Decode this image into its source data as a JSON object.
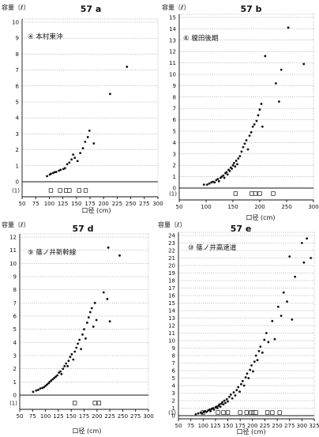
{
  "chart_data": [
    {
      "type": "scatter",
      "title": "57 a",
      "site_label": "④ 本村東沖",
      "ylabel": "容量〔ℓ〕",
      "xlabel": "口径 (cm)",
      "xlim": [
        50,
        300
      ],
      "ylim": [
        -1,
        10
      ],
      "x_ticks": [
        50,
        75,
        100,
        125,
        150,
        175,
        200,
        225,
        250,
        275,
        300
      ],
      "y_ticks": [
        0,
        1,
        2,
        3,
        4,
        5,
        6,
        7,
        8,
        9,
        10
      ],
      "y_extra_tick_label": "(1)",
      "points": [
        [
          96,
          0.35
        ],
        [
          101,
          0.45
        ],
        [
          103,
          0.5
        ],
        [
          107,
          0.55
        ],
        [
          110,
          0.6
        ],
        [
          113,
          0.62
        ],
        [
          118,
          0.7
        ],
        [
          121,
          0.75
        ],
        [
          126,
          0.8
        ],
        [
          129,
          0.85
        ],
        [
          133,
          1.1
        ],
        [
          137,
          1.2
        ],
        [
          141,
          1.4
        ],
        [
          144,
          1.7
        ],
        [
          147,
          1.5
        ],
        [
          152,
          1.3
        ],
        [
          157,
          1.8
        ],
        [
          162,
          2.1
        ],
        [
          166,
          2.5
        ],
        [
          171,
          2.8
        ],
        [
          174,
          3.2
        ],
        [
          182,
          2.4
        ],
        [
          212,
          5.5
        ],
        [
          243,
          7.2
        ]
      ],
      "bottom_markers": [
        103,
        120,
        131,
        137,
        155,
        167
      ]
    },
    {
      "type": "scatter",
      "title": "57 b",
      "site_label": "⑥ 榎田後期",
      "ylabel": "容量〔ℓ〕",
      "xlabel": "口径 (cm)",
      "xlim": [
        50,
        300
      ],
      "ylim": [
        -1,
        15
      ],
      "x_ticks": [
        50,
        100,
        150,
        200,
        250,
        300
      ],
      "y_ticks": [
        0,
        1,
        2,
        3,
        4,
        5,
        6,
        7,
        8,
        9,
        10,
        11,
        12,
        13,
        14,
        15
      ],
      "y_extra_tick_label": "(1)",
      "points": [
        [
          96,
          0.3
        ],
        [
          102,
          0.3
        ],
        [
          106,
          0.4
        ],
        [
          110,
          0.5
        ],
        [
          113,
          0.55
        ],
        [
          116,
          0.5
        ],
        [
          119,
          0.7
        ],
        [
          122,
          0.8
        ],
        [
          124,
          0.6
        ],
        [
          127,
          0.9
        ],
        [
          129,
          1.0
        ],
        [
          132,
          1.1
        ],
        [
          134,
          0.9
        ],
        [
          136,
          1.3
        ],
        [
          138,
          1.4
        ],
        [
          140,
          1.2
        ],
        [
          142,
          1.6
        ],
        [
          144,
          1.5
        ],
        [
          146,
          1.8
        ],
        [
          148,
          1.7
        ],
        [
          150,
          2.0
        ],
        [
          152,
          2.2
        ],
        [
          154,
          1.9
        ],
        [
          156,
          2.4
        ],
        [
          158,
          2.1
        ],
        [
          160,
          2.6
        ],
        [
          163,
          2.8
        ],
        [
          166,
          3.2
        ],
        [
          169,
          3.6
        ],
        [
          172,
          3.9
        ],
        [
          175,
          4.2
        ],
        [
          178,
          3.4
        ],
        [
          181,
          4.6
        ],
        [
          184,
          4.9
        ],
        [
          187,
          5.4
        ],
        [
          190,
          5.6
        ],
        [
          194,
          5.9
        ],
        [
          197,
          6.4
        ],
        [
          200,
          6.9
        ],
        [
          203,
          7.4
        ],
        [
          205,
          5.4
        ],
        [
          210,
          11.6
        ],
        [
          230,
          9.2
        ],
        [
          236,
          7.6
        ],
        [
          240,
          10.4
        ],
        [
          253,
          14.1
        ],
        [
          282,
          10.9
        ]
      ],
      "bottom_markers": [
        155,
        185,
        192,
        200,
        225
      ]
    },
    {
      "type": "scatter",
      "title": "57 d",
      "site_label": "⑨ 篠ノ井新幹線",
      "ylabel": "容量〔ℓ〕",
      "xlabel": "口径 (cm)",
      "xlim": [
        50,
        300
      ],
      "ylim": [
        -1,
        12
      ],
      "x_ticks": [
        50,
        75,
        100,
        125,
        150,
        175,
        200,
        225,
        250,
        275,
        300
      ],
      "y_ticks": [
        0,
        1,
        2,
        3,
        4,
        5,
        6,
        7,
        8,
        9,
        10,
        11,
        12
      ],
      "y_extra_tick_label": "(1)",
      "points": [
        [
          76,
          0.25
        ],
        [
          82,
          0.35
        ],
        [
          86,
          0.4
        ],
        [
          90,
          0.5
        ],
        [
          94,
          0.55
        ],
        [
          97,
          0.6
        ],
        [
          100,
          0.7
        ],
        [
          103,
          0.8
        ],
        [
          106,
          0.9
        ],
        [
          108,
          1.0
        ],
        [
          111,
          1.1
        ],
        [
          114,
          1.2
        ],
        [
          117,
          1.3
        ],
        [
          120,
          1.4
        ],
        [
          123,
          1.5
        ],
        [
          126,
          1.7
        ],
        [
          129,
          1.8
        ],
        [
          131,
          1.6
        ],
        [
          134,
          2.0
        ],
        [
          137,
          2.2
        ],
        [
          140,
          2.4
        ],
        [
          143,
          2.2
        ],
        [
          145,
          2.6
        ],
        [
          148,
          2.9
        ],
        [
          151,
          3.1
        ],
        [
          154,
          2.7
        ],
        [
          157,
          3.3
        ],
        [
          160,
          3.6
        ],
        [
          163,
          3.9
        ],
        [
          166,
          4.2
        ],
        [
          169,
          3.5
        ],
        [
          172,
          4.6
        ],
        [
          175,
          5.0
        ],
        [
          178,
          4.3
        ],
        [
          181,
          5.5
        ],
        [
          184,
          5.9
        ],
        [
          187,
          6.3
        ],
        [
          190,
          6.6
        ],
        [
          193,
          5.2
        ],
        [
          196,
          7.0
        ],
        [
          199,
          5.7
        ],
        [
          213,
          7.8
        ],
        [
          220,
          7.3
        ],
        [
          222,
          11.2
        ],
        [
          225,
          5.6
        ],
        [
          244,
          10.6
        ]
      ],
      "bottom_markers": [
        157,
        196,
        204
      ]
    },
    {
      "type": "scatter",
      "title": "57 e",
      "site_label": "⑩ 篠ノ井高速道",
      "ylabel": "容量〔ℓ〕",
      "xlabel": "口径 (cm)",
      "xlim": [
        50,
        325
      ],
      "ylim": [
        -1,
        24
      ],
      "x_ticks": [
        50,
        75,
        100,
        125,
        150,
        175,
        200,
        225,
        250,
        275,
        300,
        325
      ],
      "y_ticks": [
        0,
        1,
        2,
        3,
        4,
        5,
        6,
        7,
        8,
        9,
        10,
        11,
        12,
        13,
        14,
        15,
        16,
        17,
        18,
        19,
        20,
        21,
        22,
        23,
        24
      ],
      "y_extra_tick_label": "(1)",
      "points": [
        [
          85,
          0.2
        ],
        [
          90,
          0.3
        ],
        [
          95,
          0.4
        ],
        [
          98,
          0.3
        ],
        [
          101,
          0.5
        ],
        [
          104,
          0.6
        ],
        [
          107,
          0.5
        ],
        [
          110,
          0.7
        ],
        [
          113,
          0.8
        ],
        [
          115,
          0.6
        ],
        [
          117,
          0.9
        ],
        [
          120,
          1.0
        ],
        [
          122,
          0.8
        ],
        [
          125,
          1.1
        ],
        [
          127,
          1.2
        ],
        [
          129,
          1.0
        ],
        [
          131,
          1.3
        ],
        [
          133,
          1.5
        ],
        [
          135,
          1.2
        ],
        [
          137,
          1.6
        ],
        [
          139,
          1.8
        ],
        [
          141,
          1.5
        ],
        [
          143,
          2.0
        ],
        [
          145,
          1.7
        ],
        [
          148,
          2.2
        ],
        [
          150,
          1.9
        ],
        [
          153,
          2.5
        ],
        [
          156,
          2.8
        ],
        [
          159,
          2.3
        ],
        [
          162,
          3.1
        ],
        [
          165,
          2.7
        ],
        [
          168,
          3.4
        ],
        [
          171,
          3.8
        ],
        [
          174,
          3.2
        ],
        [
          177,
          4.2
        ],
        [
          180,
          4.6
        ],
        [
          183,
          4.0
        ],
        [
          186,
          5.1
        ],
        [
          189,
          5.6
        ],
        [
          192,
          5.0
        ],
        [
          195,
          6.1
        ],
        [
          198,
          6.7
        ],
        [
          201,
          5.9
        ],
        [
          204,
          7.2
        ],
        [
          207,
          8.0
        ],
        [
          210,
          7.4
        ],
        [
          213,
          8.6
        ],
        [
          216,
          9.2
        ],
        [
          220,
          8.4
        ],
        [
          224,
          10.1
        ],
        [
          228,
          11.0
        ],
        [
          232,
          9.8
        ],
        [
          240,
          12.6
        ],
        [
          245,
          10.2
        ],
        [
          252,
          14.5
        ],
        [
          258,
          13.3
        ],
        [
          263,
          16.4
        ],
        [
          270,
          15.2
        ],
        [
          275,
          21.2
        ],
        [
          280,
          12.8
        ],
        [
          286,
          18.5
        ],
        [
          300,
          23.0
        ],
        [
          304,
          20.4
        ],
        [
          310,
          23.6
        ],
        [
          318,
          21.0
        ]
      ],
      "bottom_markers": [
        100,
        130,
        141,
        150,
        175,
        188,
        197,
        201,
        204,
        207,
        230,
        240,
        255
      ]
    }
  ]
}
